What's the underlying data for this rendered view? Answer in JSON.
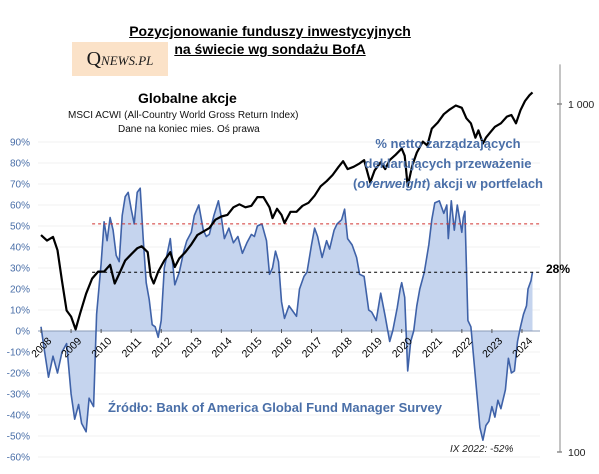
{
  "header": {
    "title_line1": "Pozycjonowanie funduszy inwestycyjnych",
    "title_line2": "na świecie wg sondażu BofA",
    "logo_q": "Q",
    "logo_rest": "NEWS.PL"
  },
  "left_legend": {
    "title": "Globalne  akcje",
    "line1": "MSCI ACWI (All-Country World Gross Return Index)",
    "line2": "Dane na koniec mies. Oś prawa"
  },
  "annotation": {
    "line1": "% netto zarządzających",
    "line2": "deklarujących przeważenie",
    "line3_pre": "(",
    "line3_em": "overweight",
    "line3_post": ") akcji w portfelach"
  },
  "source_text": "Źródło: Bank of America Global Fund Manager Survey",
  "min_note": "IX 2022: -52%",
  "last_value_label": "28%",
  "colors": {
    "fill": "#c5d4ee",
    "series": "#3f62a8",
    "index_line": "#000000",
    "ref_red": "#d0312d",
    "left_axis_text": "#4a6fa8"
  },
  "chart_data": {
    "type": "area",
    "title": "Pozycjonowanie funduszy inwestycyjnych na świecie wg sondażu BofA",
    "left_axis": {
      "ylim": [
        -60,
        90
      ],
      "ticks": [
        "90%",
        "80%",
        "70%",
        "60%",
        "50%",
        "40%",
        "30%",
        "20%",
        "10%",
        "0%",
        "-10%",
        "-20%",
        "-30%",
        "-40%",
        "-50%",
        "-60%"
      ],
      "tick_values": [
        90,
        80,
        70,
        60,
        50,
        40,
        30,
        20,
        10,
        0,
        -10,
        -20,
        -30,
        -40,
        -50,
        -60
      ]
    },
    "right_axis": {
      "scale": "log",
      "ticks": [
        "1 000",
        "100"
      ],
      "tick_values": [
        1000,
        100
      ]
    },
    "x_ticks": [
      "2008",
      "2009",
      "2010",
      "2011",
      "2012",
      "2013",
      "2014",
      "2015",
      "2016",
      "2017",
      "2018",
      "2019",
      "2020",
      "2021",
      "2022",
      "2023",
      "2024"
    ],
    "x_tick_values": [
      2008,
      2009,
      2010,
      2011,
      2012,
      2013,
      2014,
      2015,
      2016,
      2017,
      2018,
      2019,
      2020,
      2021,
      2022,
      2023,
      2024
    ],
    "reference_lines": [
      {
        "value": 51,
        "color": "red",
        "style": "dashed"
      },
      {
        "value": 28,
        "color": "black",
        "style": "dashed"
      }
    ],
    "series": [
      {
        "name": "% netto zarządzających deklarujących przeważenie (overweight) akcji w portfelach",
        "axis": "left",
        "points": [
          [
            2008.0,
            2
          ],
          [
            2008.1,
            -8
          ],
          [
            2008.25,
            -22
          ],
          [
            2008.4,
            -12
          ],
          [
            2008.55,
            -20
          ],
          [
            2008.7,
            -10
          ],
          [
            2008.85,
            -6
          ],
          [
            2009.0,
            -30
          ],
          [
            2009.12,
            -42
          ],
          [
            2009.25,
            -35
          ],
          [
            2009.35,
            -44
          ],
          [
            2009.5,
            -48
          ],
          [
            2009.6,
            -32
          ],
          [
            2009.75,
            -36
          ],
          [
            2009.85,
            8
          ],
          [
            2010.0,
            32
          ],
          [
            2010.1,
            52
          ],
          [
            2010.2,
            43
          ],
          [
            2010.3,
            54
          ],
          [
            2010.4,
            48
          ],
          [
            2010.5,
            36
          ],
          [
            2010.6,
            33
          ],
          [
            2010.7,
            55
          ],
          [
            2010.8,
            64
          ],
          [
            2010.9,
            66
          ],
          [
            2011.0,
            58
          ],
          [
            2011.1,
            51
          ],
          [
            2011.2,
            66
          ],
          [
            2011.3,
            68
          ],
          [
            2011.4,
            44
          ],
          [
            2011.5,
            23
          ],
          [
            2011.6,
            15
          ],
          [
            2011.7,
            3
          ],
          [
            2011.8,
            2
          ],
          [
            2011.9,
            -3
          ],
          [
            2012.0,
            5
          ],
          [
            2012.1,
            30
          ],
          [
            2012.2,
            37
          ],
          [
            2012.3,
            44
          ],
          [
            2012.45,
            22
          ],
          [
            2012.6,
            28
          ],
          [
            2012.75,
            38
          ],
          [
            2012.85,
            43
          ],
          [
            2013.0,
            47
          ],
          [
            2013.1,
            55
          ],
          [
            2013.25,
            60
          ],
          [
            2013.4,
            48
          ],
          [
            2013.5,
            45
          ],
          [
            2013.6,
            46
          ],
          [
            2013.75,
            55
          ],
          [
            2013.9,
            62
          ],
          [
            2014.0,
            54
          ],
          [
            2014.1,
            44
          ],
          [
            2014.25,
            49
          ],
          [
            2014.4,
            42
          ],
          [
            2014.55,
            45
          ],
          [
            2014.7,
            37
          ],
          [
            2014.85,
            42
          ],
          [
            2015.0,
            46
          ],
          [
            2015.1,
            45
          ],
          [
            2015.2,
            50
          ],
          [
            2015.35,
            51
          ],
          [
            2015.5,
            43
          ],
          [
            2015.6,
            27
          ],
          [
            2015.7,
            30
          ],
          [
            2015.8,
            38
          ],
          [
            2015.9,
            33
          ],
          [
            2016.0,
            14
          ],
          [
            2016.1,
            6
          ],
          [
            2016.25,
            12
          ],
          [
            2016.4,
            9
          ],
          [
            2016.5,
            7
          ],
          [
            2016.6,
            20
          ],
          [
            2016.75,
            26
          ],
          [
            2016.85,
            28
          ],
          [
            2017.0,
            41
          ],
          [
            2017.1,
            49
          ],
          [
            2017.2,
            45
          ],
          [
            2017.35,
            35
          ],
          [
            2017.5,
            43
          ],
          [
            2017.6,
            39
          ],
          [
            2017.75,
            48
          ],
          [
            2017.85,
            51
          ],
          [
            2018.0,
            53
          ],
          [
            2018.1,
            58
          ],
          [
            2018.2,
            44
          ],
          [
            2018.35,
            41
          ],
          [
            2018.5,
            35
          ],
          [
            2018.6,
            27
          ],
          [
            2018.75,
            26
          ],
          [
            2018.9,
            10
          ],
          [
            2019.0,
            9
          ],
          [
            2019.15,
            5
          ],
          [
            2019.3,
            18
          ],
          [
            2019.45,
            7
          ],
          [
            2019.6,
            -5
          ],
          [
            2019.7,
            0
          ],
          [
            2019.85,
            11
          ],
          [
            2019.95,
            20
          ],
          [
            2020.0,
            23
          ],
          [
            2020.1,
            16
          ],
          [
            2020.2,
            -19
          ],
          [
            2020.3,
            -5
          ],
          [
            2020.4,
            0
          ],
          [
            2020.5,
            12
          ],
          [
            2020.6,
            20
          ],
          [
            2020.75,
            28
          ],
          [
            2020.9,
            41
          ],
          [
            2021.0,
            53
          ],
          [
            2021.1,
            61
          ],
          [
            2021.25,
            62
          ],
          [
            2021.4,
            56
          ],
          [
            2021.5,
            60
          ],
          [
            2021.55,
            44
          ],
          [
            2021.65,
            62
          ],
          [
            2021.75,
            48
          ],
          [
            2021.85,
            60
          ],
          [
            2022.0,
            47
          ],
          [
            2022.05,
            54
          ],
          [
            2022.1,
            57
          ],
          [
            2022.2,
            5
          ],
          [
            2022.3,
            2
          ],
          [
            2022.4,
            -14
          ],
          [
            2022.5,
            -30
          ],
          [
            2022.6,
            -46
          ],
          [
            2022.7,
            -52
          ],
          [
            2022.8,
            -45
          ],
          [
            2022.9,
            -43
          ],
          [
            2023.0,
            -36
          ],
          [
            2023.1,
            -41
          ],
          [
            2023.2,
            -33
          ],
          [
            2023.3,
            -37
          ],
          [
            2023.45,
            -28
          ],
          [
            2023.55,
            -13
          ],
          [
            2023.65,
            -20
          ],
          [
            2023.75,
            -19
          ],
          [
            2023.85,
            -5
          ],
          [
            2023.95,
            2
          ],
          [
            2024.05,
            8
          ],
          [
            2024.15,
            12
          ],
          [
            2024.2,
            20
          ],
          [
            2024.3,
            24
          ],
          [
            2024.35,
            28
          ]
        ]
      },
      {
        "name": "Globalne akcje — MSCI ACWI (All-Country World Gross Return Index)",
        "axis": "right",
        "points": [
          [
            2008.0,
            420
          ],
          [
            2008.2,
            405
          ],
          [
            2008.4,
            415
          ],
          [
            2008.55,
            380
          ],
          [
            2008.7,
            310
          ],
          [
            2008.85,
            255
          ],
          [
            2009.0,
            245
          ],
          [
            2009.15,
            225
          ],
          [
            2009.3,
            250
          ],
          [
            2009.5,
            285
          ],
          [
            2009.7,
            315
          ],
          [
            2009.9,
            330
          ],
          [
            2010.1,
            330
          ],
          [
            2010.3,
            345
          ],
          [
            2010.45,
            305
          ],
          [
            2010.6,
            325
          ],
          [
            2010.8,
            355
          ],
          [
            2011.0,
            370
          ],
          [
            2011.2,
            385
          ],
          [
            2011.35,
            390
          ],
          [
            2011.55,
            375
          ],
          [
            2011.65,
            320
          ],
          [
            2011.75,
            305
          ],
          [
            2011.9,
            330
          ],
          [
            2012.1,
            355
          ],
          [
            2012.3,
            375
          ],
          [
            2012.45,
            340
          ],
          [
            2012.6,
            360
          ],
          [
            2012.8,
            375
          ],
          [
            2013.0,
            395
          ],
          [
            2013.2,
            420
          ],
          [
            2013.4,
            430
          ],
          [
            2013.6,
            440
          ],
          [
            2013.8,
            465
          ],
          [
            2014.0,
            475
          ],
          [
            2014.2,
            480
          ],
          [
            2014.4,
            505
          ],
          [
            2014.6,
            515
          ],
          [
            2014.8,
            505
          ],
          [
            2015.0,
            510
          ],
          [
            2015.2,
            540
          ],
          [
            2015.4,
            540
          ],
          [
            2015.6,
            505
          ],
          [
            2015.7,
            470
          ],
          [
            2015.85,
            500
          ],
          [
            2016.0,
            480
          ],
          [
            2016.1,
            455
          ],
          [
            2016.3,
            490
          ],
          [
            2016.5,
            490
          ],
          [
            2016.7,
            510
          ],
          [
            2016.9,
            520
          ],
          [
            2017.1,
            545
          ],
          [
            2017.3,
            580
          ],
          [
            2017.5,
            600
          ],
          [
            2017.7,
            625
          ],
          [
            2017.9,
            660
          ],
          [
            2018.05,
            685
          ],
          [
            2018.2,
            650
          ],
          [
            2018.4,
            660
          ],
          [
            2018.6,
            675
          ],
          [
            2018.75,
            690
          ],
          [
            2018.95,
            595
          ],
          [
            2019.1,
            645
          ],
          [
            2019.3,
            680
          ],
          [
            2019.45,
            650
          ],
          [
            2019.6,
            690
          ],
          [
            2019.8,
            715
          ],
          [
            2020.0,
            745
          ],
          [
            2020.1,
            710
          ],
          [
            2020.2,
            580
          ],
          [
            2020.35,
            665
          ],
          [
            2020.5,
            725
          ],
          [
            2020.7,
            780
          ],
          [
            2020.85,
            760
          ],
          [
            2021.0,
            850
          ],
          [
            2021.2,
            885
          ],
          [
            2021.4,
            935
          ],
          [
            2021.6,
            965
          ],
          [
            2021.8,
            990
          ],
          [
            2022.0,
            975
          ],
          [
            2022.15,
            910
          ],
          [
            2022.3,
            880
          ],
          [
            2022.45,
            800
          ],
          [
            2022.55,
            840
          ],
          [
            2022.7,
            770
          ],
          [
            2022.8,
            800
          ],
          [
            2022.95,
            830
          ],
          [
            2023.1,
            860
          ],
          [
            2023.3,
            880
          ],
          [
            2023.5,
            920
          ],
          [
            2023.65,
            930
          ],
          [
            2023.8,
            880
          ],
          [
            2023.95,
            960
          ],
          [
            2024.1,
            1020
          ],
          [
            2024.25,
            1060
          ],
          [
            2024.35,
            1080
          ]
        ]
      }
    ]
  }
}
